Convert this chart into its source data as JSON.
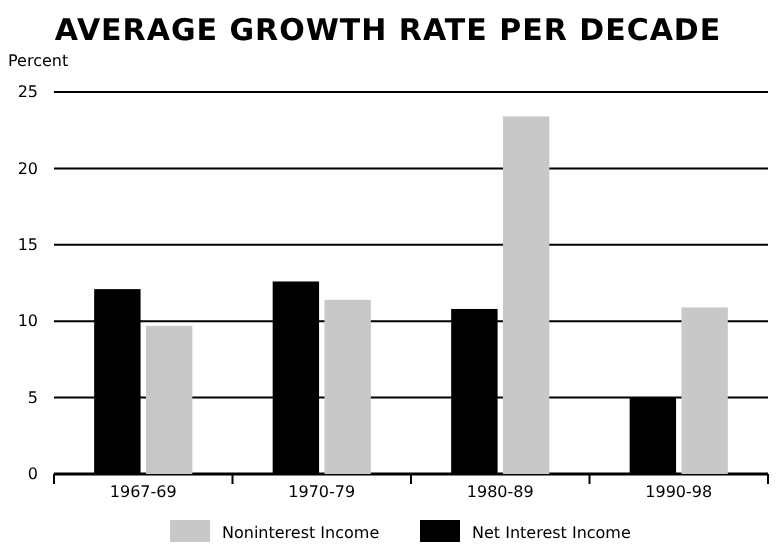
{
  "chart_data": {
    "type": "bar",
    "title": "AVERAGE GROWTH RATE PER DECADE",
    "ylabel": "Percent",
    "categories": [
      "1967-69",
      "1970-79",
      "1980-89",
      "1990-98"
    ],
    "series": [
      {
        "name": "Net Interest Income",
        "color": "#000000",
        "values": [
          12.1,
          12.6,
          10.8,
          5.0
        ]
      },
      {
        "name": "Noninterest Income",
        "color": "#c8c8c8",
        "values": [
          9.7,
          11.4,
          23.4,
          10.9
        ]
      }
    ],
    "ylim": [
      0,
      25
    ],
    "yticks": [
      0,
      5,
      10,
      15,
      20,
      25
    ],
    "grid": "y",
    "legend": "bottom"
  }
}
